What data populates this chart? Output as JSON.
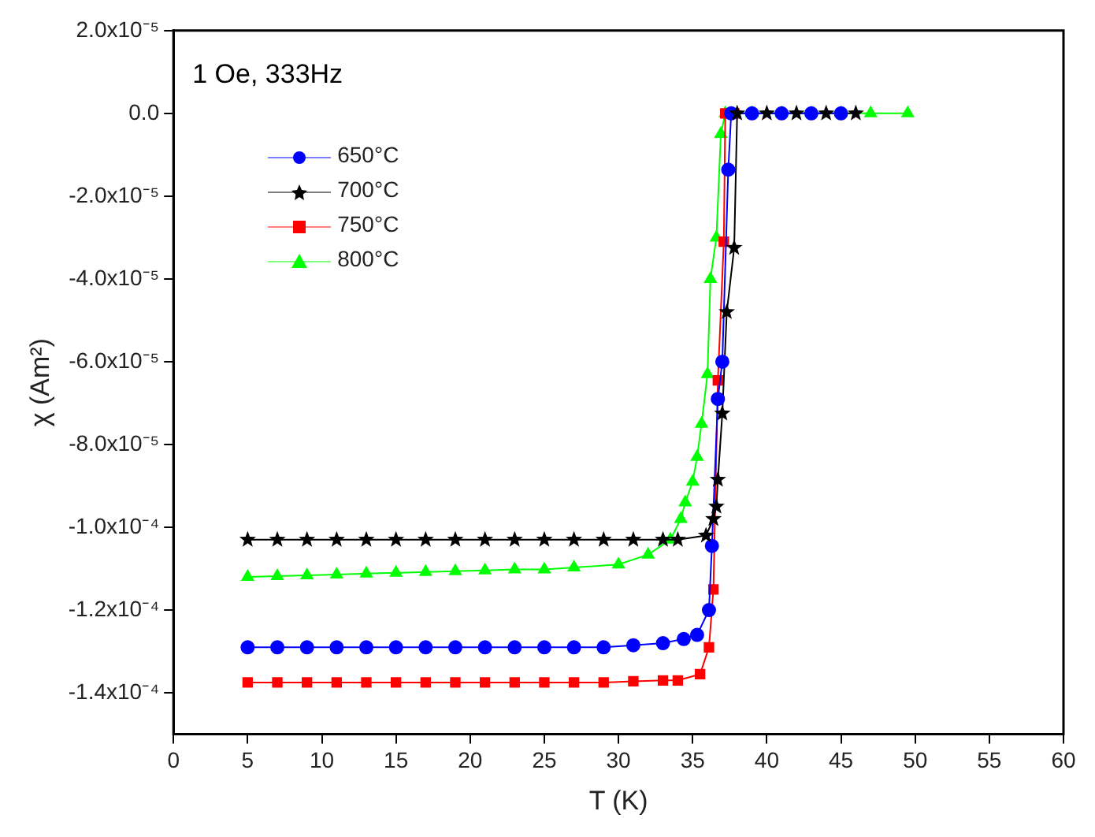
{
  "chart_data": {
    "type": "line",
    "xlabel": "T (K)",
    "ylabel": "χ (Am²)",
    "annotations": [
      "1 Oe, 333Hz"
    ],
    "xlim": [
      0,
      60
    ],
    "xticks": [
      0,
      5,
      10,
      15,
      20,
      25,
      30,
      35,
      40,
      45,
      50,
      55,
      60
    ],
    "ylim": [
      -0.00015,
      2e-05
    ],
    "yticks": [
      {
        "value": 2e-05,
        "label": "2.0x10⁻⁵"
      },
      {
        "value": 0,
        "label": "0.0"
      },
      {
        "value": -2e-05,
        "label": "-2.0x10⁻⁵"
      },
      {
        "value": -4e-05,
        "label": "-4.0x10⁻⁵"
      },
      {
        "value": -6e-05,
        "label": "-6.0x10⁻⁵"
      },
      {
        "value": -8e-05,
        "label": "-8.0x10⁻⁵"
      },
      {
        "value": -0.0001,
        "label": "-1.0x10⁻⁴"
      },
      {
        "value": -0.00012,
        "label": "-1.2x10⁻⁴"
      },
      {
        "value": -0.00014,
        "label": "-1.4x10⁻⁴"
      }
    ],
    "grid": false,
    "legend": "top left",
    "series": [
      {
        "name": "650°C",
        "color": "#0000ff",
        "marker": "circle",
        "x": [
          5,
          7,
          9,
          11,
          13,
          15,
          17,
          19,
          21,
          23,
          25,
          27,
          29,
          31,
          33,
          34.4,
          35.3,
          36.1,
          36.3,
          36.7,
          37.0,
          37.4,
          37.6,
          39,
          41,
          43,
          45
        ],
        "values": [
          -0.000129,
          -0.000129,
          -0.000129,
          -0.000129,
          -0.000129,
          -0.000129,
          -0.000129,
          -0.000129,
          -0.000129,
          -0.000129,
          -0.000129,
          -0.000129,
          -0.000129,
          -0.0001285,
          -0.000128,
          -0.000127,
          -0.000126,
          -0.00012,
          -0.0001045,
          -6.9e-05,
          -6e-05,
          -1.36e-05,
          0,
          0,
          0,
          0,
          0
        ]
      },
      {
        "name": "700°C",
        "color": "#000000",
        "marker": "star",
        "x": [
          5,
          7,
          9,
          11,
          13,
          15,
          17,
          19,
          21,
          23,
          25,
          27,
          29,
          31,
          33,
          34,
          35.9,
          36.4,
          36.6,
          36.7,
          37.0,
          37.3,
          37.8,
          38.0,
          40,
          42,
          44,
          46
        ],
        "values": [
          -0.000103,
          -0.000103,
          -0.000103,
          -0.000103,
          -0.000103,
          -0.000103,
          -0.000103,
          -0.000103,
          -0.000103,
          -0.000103,
          -0.000103,
          -0.000103,
          -0.000103,
          -0.000103,
          -0.000103,
          -0.000103,
          -0.000102,
          -9.8e-05,
          -9.5e-05,
          -8.85e-05,
          -7.25e-05,
          -4.8e-05,
          -3.25e-05,
          0,
          0,
          0,
          0,
          0
        ]
      },
      {
        "name": "750°C",
        "color": "#ff0000",
        "marker": "square",
        "x": [
          5,
          7,
          9,
          11,
          13,
          15,
          17,
          19,
          21,
          23,
          25,
          27,
          29,
          31,
          33,
          34,
          35.5,
          36.1,
          36.4,
          36.7,
          37.1,
          37.2,
          37.8
        ],
        "values": [
          -0.0001375,
          -0.0001375,
          -0.0001375,
          -0.0001375,
          -0.0001375,
          -0.0001375,
          -0.0001375,
          -0.0001375,
          -0.0001375,
          -0.0001375,
          -0.0001375,
          -0.0001375,
          -0.0001375,
          -0.0001372,
          -0.000137,
          -0.000137,
          -0.0001355,
          -0.000129,
          -0.000115,
          -6.45e-05,
          -3.1e-05,
          0,
          0
        ]
      },
      {
        "name": "800°C",
        "color": "#00ff00",
        "marker": "triangle",
        "x": [
          5,
          7,
          9,
          11,
          13,
          15,
          17,
          19,
          21,
          23,
          25,
          27,
          30,
          32,
          33.5,
          34.2,
          34.5,
          35,
          35.3,
          35.6,
          36.0,
          36.2,
          36.6,
          36.9,
          37.2,
          39,
          41,
          43,
          45,
          47,
          49.5
        ],
        "values": [
          -0.000112,
          -0.0001118,
          -0.0001116,
          -0.0001114,
          -0.0001112,
          -0.000111,
          -0.0001108,
          -0.0001106,
          -0.0001104,
          -0.0001102,
          -0.0001102,
          -0.0001097,
          -0.000109,
          -0.0001066,
          -0.000103,
          -9.8e-05,
          -9.4e-05,
          -8.9e-05,
          -8.3e-05,
          -7.5e-05,
          -6.3e-05,
          -4e-05,
          -3e-05,
          -5e-06,
          0,
          0,
          0,
          0,
          0,
          0,
          0
        ]
      }
    ]
  }
}
